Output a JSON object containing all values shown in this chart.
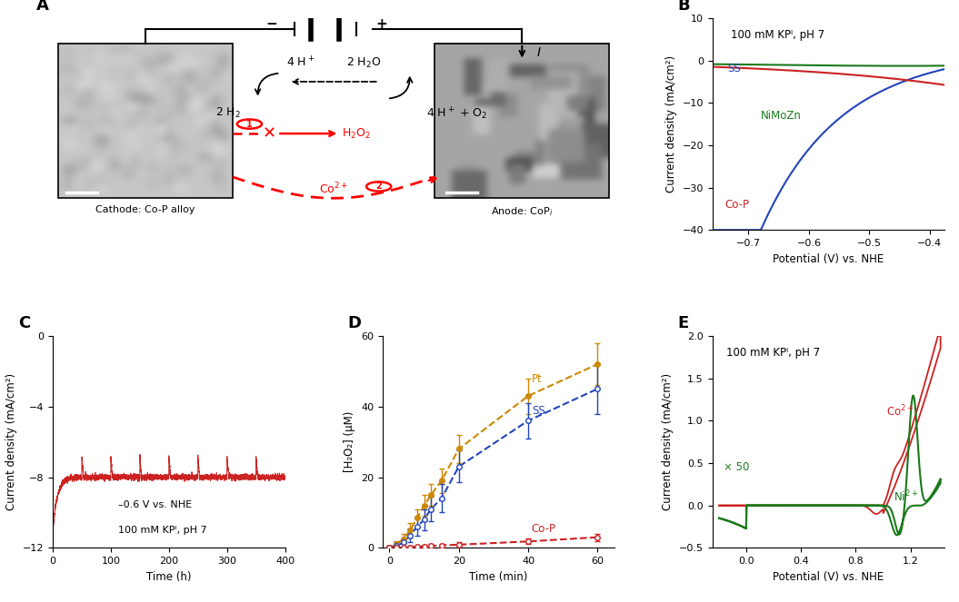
{
  "panel_B": {
    "title": "100 mM KPᴵ, pH 7",
    "xlabel": "Potential (V) vs. NHE",
    "ylabel": "Current density (mA/cm²)",
    "xlim": [
      -0.76,
      -0.375
    ],
    "ylim": [
      -40,
      10
    ],
    "xticks": [
      -0.7,
      -0.6,
      -0.5,
      -0.4
    ],
    "yticks": [
      -40,
      -30,
      -20,
      -10,
      0,
      10
    ],
    "curves": {
      "SS": {
        "color": "#2244bb",
        "label": "SS"
      },
      "NiMoZn": {
        "color": "#1a7a1a",
        "label": "NiMoZn"
      },
      "Co-P": {
        "color": "#cc2222",
        "label": "Co-P"
      }
    }
  },
  "panel_C": {
    "xlabel": "Time (h)",
    "ylabel": "Current density (mA/cm²)",
    "xlim": [
      0,
      400
    ],
    "ylim": [
      -12,
      0
    ],
    "xticks": [
      0,
      100,
      200,
      300,
      400
    ],
    "yticks": [
      -12,
      -8,
      -4,
      0
    ],
    "annotation_line1": "–0.6 V vs. NHE",
    "annotation_line2": "100 mM KPᴵ, pH 7",
    "color": "#cc2222"
  },
  "panel_D": {
    "xlabel": "Time (min)",
    "ylabel": "[H₂O₂] (μM)",
    "xlim": [
      -2,
      65
    ],
    "ylim": [
      0,
      60
    ],
    "xticks": [
      0,
      20,
      40,
      60
    ],
    "yticks": [
      0,
      20,
      40,
      60
    ],
    "curves": {
      "Pt": {
        "color": "#cc8800",
        "x": [
          0,
          2,
          4,
          6,
          8,
          10,
          12,
          15,
          20,
          40,
          60
        ],
        "y": [
          0,
          1,
          2.5,
          5,
          8.5,
          12,
          15,
          19,
          28,
          43,
          52
        ],
        "yerr": [
          0.5,
          1,
          1.5,
          2,
          2.5,
          3,
          3,
          3.5,
          4,
          5,
          6
        ]
      },
      "SS": {
        "color": "#2244bb",
        "x": [
          0,
          2,
          4,
          6,
          8,
          10,
          12,
          15,
          20,
          40,
          60
        ],
        "y": [
          0,
          0.5,
          1.5,
          3.5,
          6,
          8,
          11,
          14,
          23,
          36,
          45
        ],
        "yerr": [
          0.5,
          1,
          1.5,
          2,
          2.5,
          3,
          3.5,
          4,
          4.5,
          5,
          7
        ]
      },
      "Co-P": {
        "color": "#cc2222",
        "x": [
          0,
          2,
          4,
          6,
          8,
          10,
          12,
          15,
          20,
          40,
          60
        ],
        "y": [
          0,
          0,
          0,
          0.2,
          0.3,
          0.4,
          0.5,
          0.7,
          0.9,
          1.8,
          3.0
        ],
        "yerr": [
          0.2,
          0.2,
          0.3,
          0.3,
          0.4,
          0.4,
          0.5,
          0.5,
          0.6,
          0.8,
          1.0
        ]
      }
    }
  },
  "panel_E": {
    "title": "100 mM KPᴵ, pH 7",
    "xlabel": "Potential (V) vs. NHE",
    "ylabel": "Current density (mA/cm²)",
    "xlim": [
      -0.25,
      1.45
    ],
    "ylim": [
      -0.5,
      2.0
    ],
    "xticks": [
      0,
      0.4,
      0.8,
      1.2
    ],
    "yticks": [
      -0.5,
      0,
      0.5,
      1.0,
      1.5,
      2.0
    ],
    "curves": {
      "Co2+": {
        "color": "#cc2222",
        "label": "Co²⁺"
      },
      "Ni2+": {
        "color": "#1a7a1a",
        "label": "Ni²⁺"
      }
    },
    "annotation": "× 50"
  }
}
